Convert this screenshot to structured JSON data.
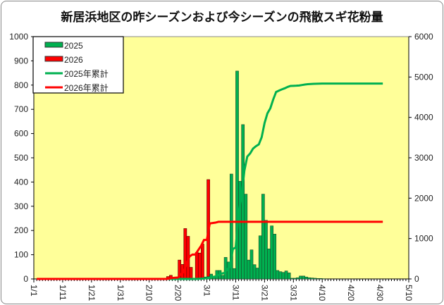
{
  "chart_data": {
    "type": "bar",
    "title": "新居浜地区の昨シーズンおよび今シーズンの飛散スギ花粉量",
    "xlabel": "",
    "ylabel": "",
    "y2label": "",
    "ylim": [
      0,
      1000
    ],
    "y2lim": [
      0,
      6000
    ],
    "yticks": [
      "0",
      "100",
      "200",
      "300",
      "400",
      "500",
      "600",
      "700",
      "800",
      "900",
      "1000"
    ],
    "y2ticks": [
      "0",
      "1000",
      "2000",
      "3000",
      "4000",
      "5000",
      "6000"
    ],
    "xticks": [
      "1/1",
      "1/11",
      "1/21",
      "1/31",
      "2/10",
      "2/20",
      "3/1",
      "3/11",
      "3/21",
      "3/31",
      "4/10",
      "4/20",
      "4/30",
      "5/10"
    ],
    "x_range_days_from_jan1": [
      0,
      130
    ],
    "cumulative_end_day": 120,
    "legend_position": "top-left",
    "grid": false,
    "series": [
      {
        "name": "2025",
        "kind": "bar",
        "axis": "left",
        "color": "#00B050",
        "start_day": 56,
        "values": [
          3,
          3,
          5,
          8,
          10,
          20,
          12,
          35,
          35,
          15,
          89,
          70,
          433,
          43,
          858,
          403,
          637,
          350,
          78,
          120,
          59,
          45,
          178,
          350,
          242,
          124,
          219,
          185,
          35,
          30,
          27,
          33,
          25,
          3,
          3,
          5,
          12,
          12,
          8,
          5,
          4,
          3,
          2,
          2,
          1
        ]
      },
      {
        "name": "2026",
        "kind": "bar",
        "axis": "left",
        "color": "#FF0000",
        "start_day": 46,
        "values": [
          10,
          15,
          5,
          5,
          78,
          60,
          208,
          176,
          48,
          0,
          109,
          107,
          144,
          0,
          410,
          10,
          10,
          20
        ]
      },
      {
        "name": "2025年累計",
        "kind": "line",
        "axis": "right",
        "color": "#00B050",
        "cumulative_of": "2025"
      },
      {
        "name": "2026年累計",
        "kind": "line",
        "axis": "right",
        "color": "#FF0000",
        "cumulative_of": "2026"
      }
    ]
  }
}
